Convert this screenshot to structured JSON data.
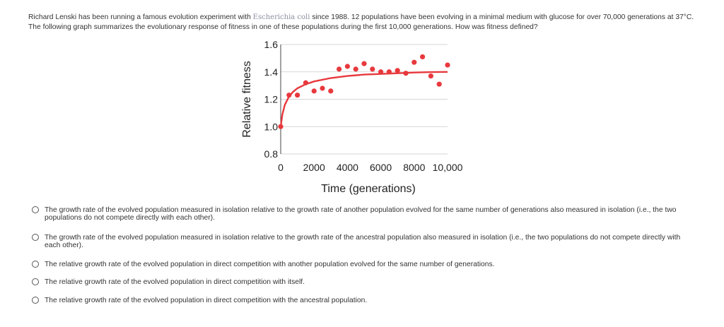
{
  "question": {
    "text_before": "Richard Lenski has been running a famous evolution experiment with ",
    "organism": "Escherichia coli",
    "text_after": " since 1988.  12 populations have been evolving in a minimal medium with glucose for over 70,000 generations at 37°C.  The following graph summarizes the evolutionary response of fitness in one of these populations during the first 10,000 generations.  How was fitness defined?"
  },
  "chart_data": {
    "type": "scatter",
    "xlabel": "Time (generations)",
    "ylabel": "Relative fitness",
    "xlim": [
      0,
      10000
    ],
    "ylim": [
      0.8,
      1.6
    ],
    "x_ticks": [
      "0",
      "2000",
      "4000",
      "6000",
      "8000",
      "10,000"
    ],
    "x_tick_values": [
      0,
      2000,
      4000,
      6000,
      8000,
      10000
    ],
    "y_ticks": [
      "0.8",
      "1.0",
      "1.2",
      "1.4",
      "1.6"
    ],
    "y_tick_values": [
      0.8,
      1.0,
      1.2,
      1.4,
      1.6
    ],
    "grid": "horizontal",
    "point_color": "#e8383d",
    "curve_color": "#e8383d",
    "series": [
      {
        "points": [
          [
            0,
            1.0
          ],
          [
            500,
            1.23
          ],
          [
            1000,
            1.23
          ],
          [
            1500,
            1.32
          ],
          [
            2000,
            1.26
          ],
          [
            2500,
            1.28
          ],
          [
            3000,
            1.26
          ],
          [
            3500,
            1.42
          ],
          [
            4000,
            1.44
          ],
          [
            4500,
            1.42
          ],
          [
            5000,
            1.46
          ],
          [
            5500,
            1.42
          ],
          [
            6000,
            1.4
          ],
          [
            6500,
            1.4
          ],
          [
            7000,
            1.41
          ],
          [
            7500,
            1.39
          ],
          [
            8000,
            1.47
          ],
          [
            8500,
            1.51
          ],
          [
            9000,
            1.37
          ],
          [
            9500,
            1.31
          ],
          [
            10000,
            1.45
          ]
        ]
      }
    ],
    "fit_curve": [
      [
        0,
        1.0
      ],
      [
        100,
        1.09
      ],
      [
        250,
        1.16
      ],
      [
        500,
        1.22
      ],
      [
        750,
        1.255
      ],
      [
        1000,
        1.28
      ],
      [
        1500,
        1.31
      ],
      [
        2000,
        1.33
      ],
      [
        3000,
        1.355
      ],
      [
        4000,
        1.37
      ],
      [
        5000,
        1.38
      ],
      [
        6000,
        1.385
      ],
      [
        7000,
        1.39
      ],
      [
        8000,
        1.395
      ],
      [
        9000,
        1.398
      ],
      [
        10000,
        1.4
      ]
    ]
  },
  "options": [
    {
      "text": "The growth rate of the evolved population measured in isolation relative to the growth rate of another population evolved for the same number of generations also measured in isolation (i.e., the two populations do not compete directly with each other)."
    },
    {
      "text": "The growth rate of the evolved population measured in isolation relative to the growth rate of the ancestral population also measured in isolation (i.e., the two populations do not compete directly with each other)."
    },
    {
      "text": "The relative growth rate of the evolved population in direct competition with another population evolved for the same number of generations."
    },
    {
      "text": "The relative growth rate of the evolved population in direct competition with itself."
    },
    {
      "text": "The relative growth rate of the evolved population in direct competition with the ancestral population."
    }
  ]
}
